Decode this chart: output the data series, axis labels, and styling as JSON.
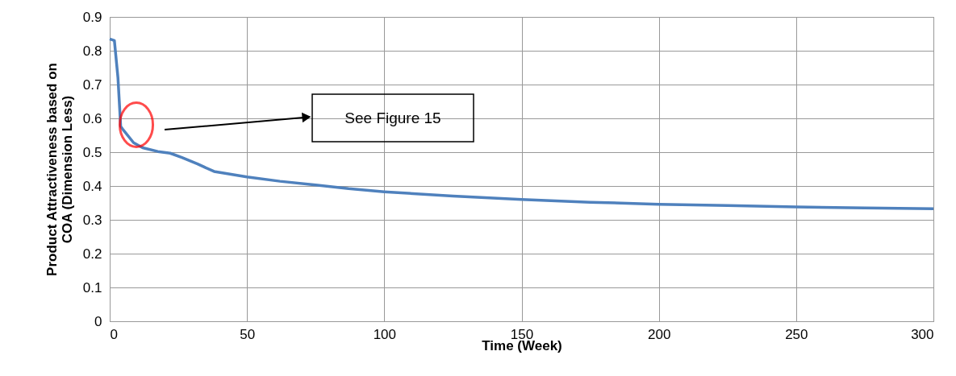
{
  "chart_data": {
    "type": "line",
    "xlabel": "Time (Week)",
    "ylabel": "Product Attractiveness based on COA (Dimension Less)",
    "x": [
      0,
      1.7,
      3,
      4,
      5,
      8.7,
      12,
      17.5,
      22,
      26.3,
      32,
      38,
      50,
      62,
      75,
      87,
      100,
      125,
      150,
      175,
      200,
      225,
      250,
      275,
      300
    ],
    "series": [
      {
        "color": "#4f81bd",
        "values": [
          0.835,
          0.83,
          0.72,
          0.576,
          0.565,
          0.528,
          0.513,
          0.502,
          0.497,
          0.484,
          0.465,
          0.443,
          0.427,
          0.414,
          0.403,
          0.392,
          0.383,
          0.37,
          0.36,
          0.352,
          0.346,
          0.342,
          0.338,
          0.335,
          0.333
        ]
      }
    ],
    "xlim": [
      0,
      300
    ],
    "xticks": [
      0,
      50,
      100,
      150,
      200,
      250,
      300
    ],
    "ylim": [
      0,
      0.9
    ],
    "yticks": [
      0,
      0.1,
      0.2,
      0.3,
      0.4,
      0.5,
      0.6,
      0.7,
      0.8,
      0.9
    ],
    "grid": true,
    "marker": "none",
    "line_style": "solid",
    "annotations": [
      "See Figure 15"
    ]
  }
}
